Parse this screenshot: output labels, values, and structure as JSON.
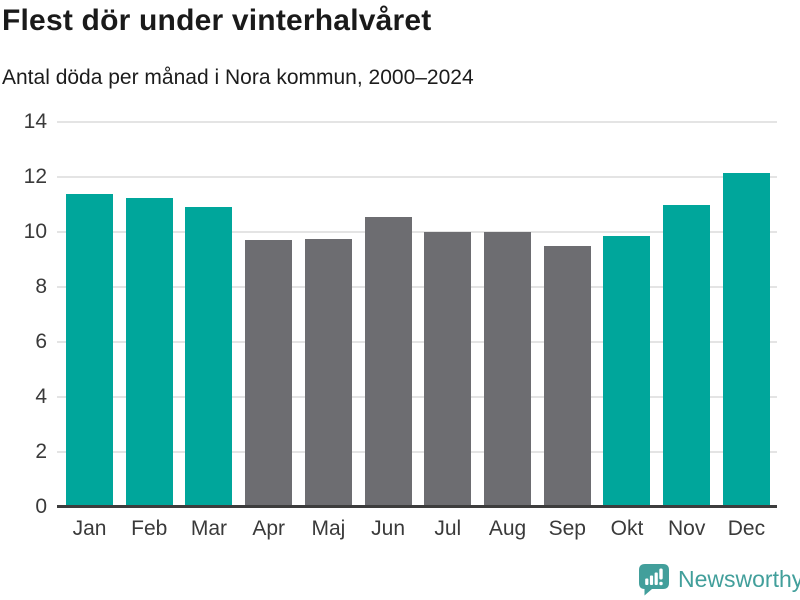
{
  "header": {
    "title": "Flest dör under vinterhalvåret",
    "subtitle": "Antal döda per månad i Nora kommun, 2000–2024"
  },
  "footer": {
    "brand": "Newsworthy",
    "logo_icon": "newsworthy-speech-bubble-chart-icon",
    "brand_color": "#429f9b"
  },
  "palette": {
    "highlight_teal": "#00a69b",
    "muted_gray": "#6d6d71",
    "gridline": "#e4e4e4",
    "axis_line": "#3d3d3d",
    "tick_text": "#3a3a3a",
    "title_text": "#1a1a1a"
  },
  "chart_data": {
    "type": "bar",
    "title": "Flest dör under vinterhalvåret",
    "subtitle": "Antal döda per månad i Nora kommun, 2000–2024",
    "categories": [
      "Jan",
      "Feb",
      "Mar",
      "Apr",
      "Maj",
      "Jun",
      "Jul",
      "Aug",
      "Sep",
      "Okt",
      "Nov",
      "Dec"
    ],
    "values": [
      11.4,
      11.25,
      10.9,
      9.7,
      9.75,
      10.55,
      10.0,
      10.0,
      9.5,
      9.85,
      11.0,
      12.15
    ],
    "bar_colors": [
      "#00a69b",
      "#00a69b",
      "#00a69b",
      "#6d6d71",
      "#6d6d71",
      "#6d6d71",
      "#6d6d71",
      "#6d6d71",
      "#6d6d71",
      "#00a69b",
      "#00a69b",
      "#00a69b"
    ],
    "xlabel": "",
    "ylabel": "",
    "ylim": [
      0,
      14
    ],
    "yticks": [
      0,
      2,
      4,
      6,
      8,
      10,
      12,
      14
    ],
    "grid": "horizontal",
    "legend": "none"
  }
}
